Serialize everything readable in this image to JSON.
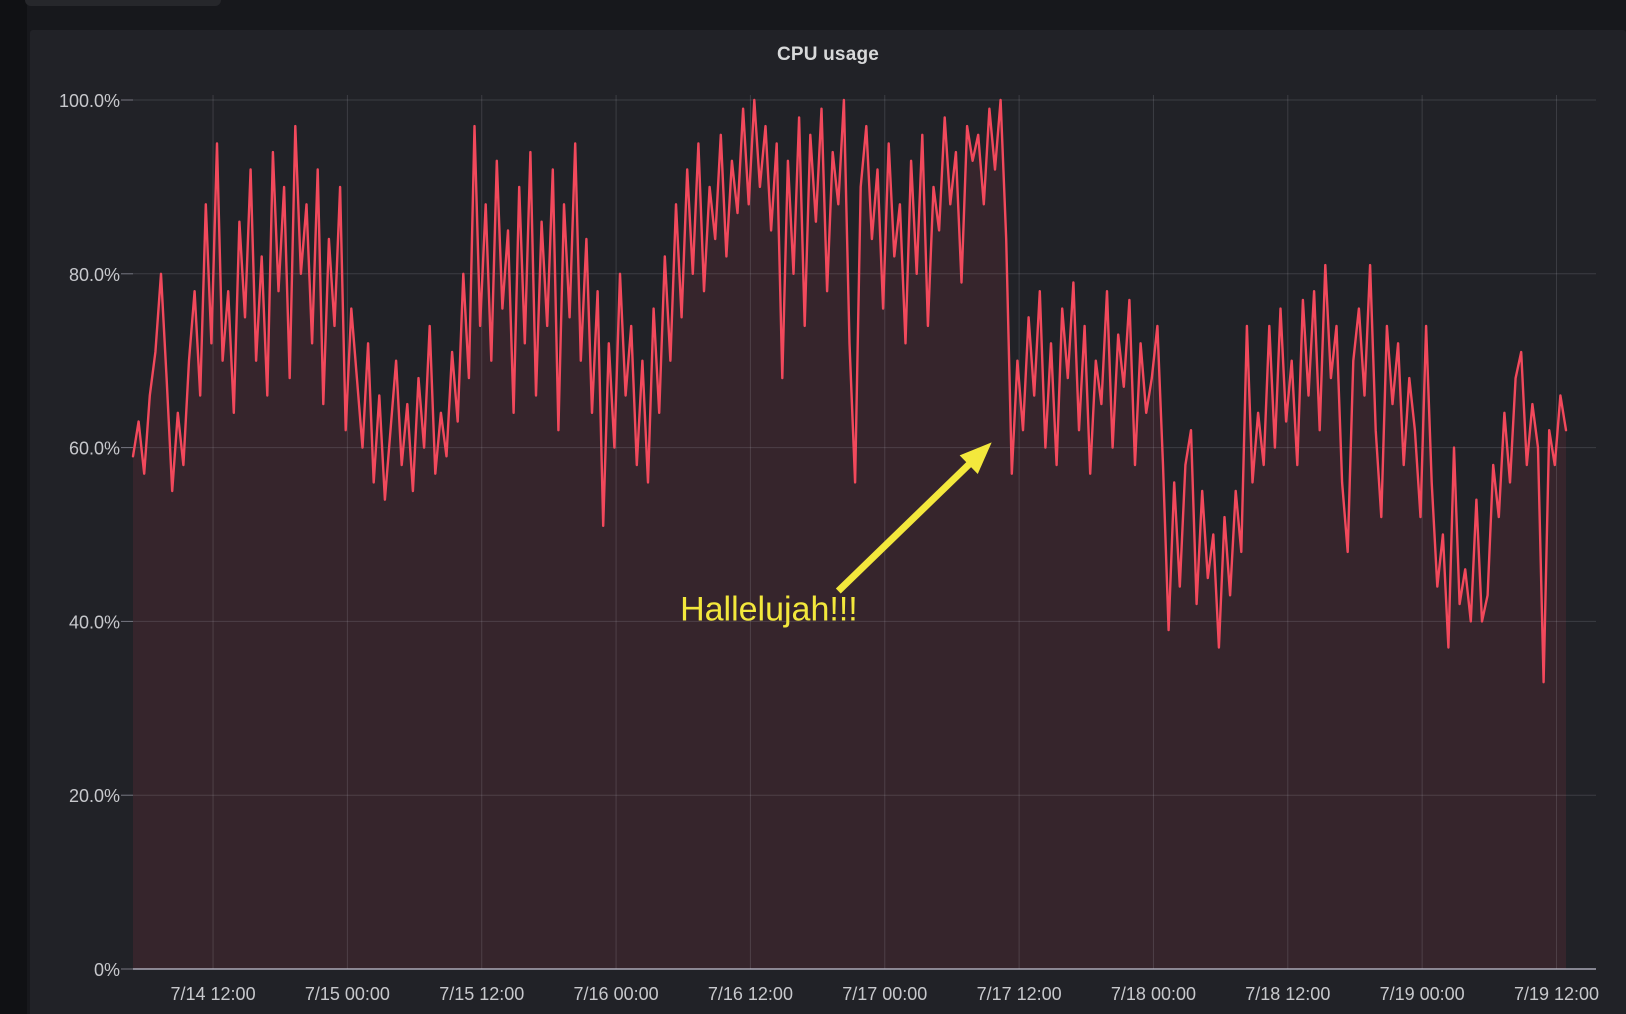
{
  "window": {
    "background_color": "#17181c",
    "panel_color": "#212227"
  },
  "panel": {
    "title": "CPU usage",
    "title_color": "#d8d9da"
  },
  "annotation": {
    "text": "Hallelujah!!!",
    "color": "#f3e83c",
    "text_anchor": {
      "time_hours": 56.8,
      "value_pct": 41.3
    },
    "arrow": {
      "from": {
        "time_hours": 63.0,
        "value_pct": 43.5
      },
      "to": {
        "time_hours": 76.7,
        "value_pct": 60.6
      },
      "stroke_width": 7
    }
  },
  "chart_data": {
    "type": "area",
    "title": "CPU usage",
    "unit": "%",
    "ylim": [
      0,
      100
    ],
    "grid": true,
    "legend": "none",
    "x_range_hours": [
      0,
      128
    ],
    "sample_interval_hours": 0.5,
    "series_start": "7/14 ~05:00",
    "y_ticks": [
      {
        "label": "100.0%",
        "value": 100
      },
      {
        "label": "80.0%",
        "value": 80
      },
      {
        "label": "60.0%",
        "value": 60
      },
      {
        "label": "40.0%",
        "value": 40
      },
      {
        "label": "20.0%",
        "value": 20
      },
      {
        "label": "0%",
        "value": 0
      }
    ],
    "x_ticks": [
      {
        "label": "7/14 12:00",
        "hour": 7.15
      },
      {
        "label": "7/15 00:00",
        "hour": 19.15
      },
      {
        "label": "7/15 12:00",
        "hour": 31.15
      },
      {
        "label": "7/16 00:00",
        "hour": 43.15
      },
      {
        "label": "7/16 12:00",
        "hour": 55.15
      },
      {
        "label": "7/17 00:00",
        "hour": 67.15
      },
      {
        "label": "7/17 12:00",
        "hour": 79.15
      },
      {
        "label": "7/18 00:00",
        "hour": 91.15
      },
      {
        "label": "7/18 12:00",
        "hour": 103.15
      },
      {
        "label": "7/19 00:00",
        "hour": 115.15
      },
      {
        "label": "7/19 12:00",
        "hour": 127.15
      }
    ],
    "colors": {
      "line": "#f2495c",
      "fill": "rgba(242,73,92,0.10)",
      "grid": "rgba(204,204,220,0.16)",
      "axis_line": "rgba(204,204,220,0.50)",
      "tick_text": "#c7c8cc"
    },
    "series": [
      {
        "name": "cpu",
        "color": "#f2495c",
        "values": [
          59,
          63,
          57,
          66,
          71,
          80,
          68,
          55,
          64,
          58,
          70,
          78,
          66,
          88,
          72,
          95,
          70,
          78,
          64,
          86,
          75,
          92,
          70,
          82,
          66,
          94,
          78,
          90,
          68,
          97,
          80,
          88,
          72,
          92,
          65,
          84,
          74,
          90,
          62,
          76,
          68,
          60,
          72,
          56,
          66,
          54,
          62,
          70,
          58,
          65,
          55,
          68,
          60,
          74,
          57,
          64,
          59,
          71,
          63,
          80,
          68,
          97,
          74,
          88,
          70,
          93,
          76,
          85,
          64,
          90,
          72,
          94,
          66,
          86,
          74,
          92,
          62,
          88,
          75,
          95,
          70,
          84,
          64,
          78,
          51,
          72,
          60,
          80,
          66,
          74,
          58,
          70,
          56,
          76,
          64,
          82,
          70,
          88,
          75,
          92,
          80,
          95,
          78,
          90,
          84,
          96,
          82,
          93,
          87,
          99,
          88,
          100,
          90,
          97,
          85,
          95,
          68,
          93,
          80,
          98,
          74,
          96,
          86,
          99,
          78,
          94,
          88,
          100,
          72,
          56,
          90,
          97,
          84,
          92,
          76,
          95,
          82,
          88,
          72,
          93,
          80,
          96,
          74,
          90,
          85,
          98,
          88,
          94,
          79,
          97,
          93,
          96,
          88,
          99,
          92,
          100,
          84,
          57,
          70,
          62,
          75,
          66,
          78,
          60,
          72,
          58,
          76,
          68,
          79,
          62,
          74,
          57,
          70,
          65,
          78,
          60,
          73,
          67,
          77,
          58,
          72,
          64,
          68,
          74,
          58,
          39,
          56,
          44,
          58,
          62,
          42,
          55,
          45,
          50,
          37,
          52,
          43,
          55,
          48,
          74,
          56,
          64,
          58,
          74,
          60,
          76,
          63,
          70,
          58,
          77,
          66,
          78,
          62,
          81,
          68,
          74,
          56,
          48,
          70,
          76,
          66,
          81,
          62,
          52,
          74,
          65,
          72,
          58,
          68,
          62,
          52,
          74,
          56,
          44,
          50,
          37,
          60,
          42,
          46,
          40,
          54,
          40,
          43,
          58,
          52,
          64,
          56,
          68,
          71,
          58,
          65,
          60,
          33,
          62,
          58,
          66,
          62
        ]
      }
    ]
  }
}
